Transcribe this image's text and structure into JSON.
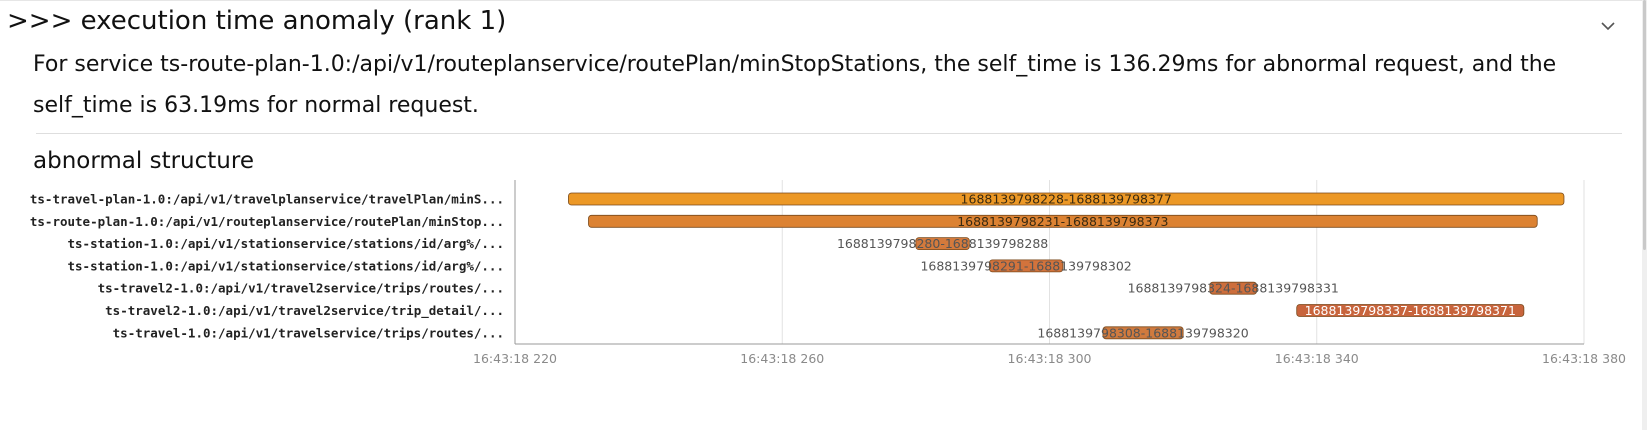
{
  "section": {
    "title": ">>> execution time anomaly (rank 1)",
    "collapse_icon": "chevron-down-icon",
    "description": "For service ts-route-plan-1.0:/api/v1/routeplanservice/routePlan/minStopStations, the self_time is 136.29ms for abnormal request, and the self_time is 63.19ms for normal request.",
    "subtitle": "abnormal structure"
  },
  "chart_data": {
    "type": "gantt",
    "x_axis_ticks": [
      "16:43:18 220",
      "16:43:18 260",
      "16:43:18 300",
      "16:43:18 340",
      "16:43:18 380"
    ],
    "xlim_ms": [
      220,
      380
    ],
    "base_epoch_ms": 1688139798000,
    "grid": true,
    "spans": [
      {
        "service": "ts-travel-plan-1.0:/api/v1/travelplanservice/travelPlan/minS...",
        "start": 1688139798228,
        "end": 1688139798377,
        "label": "1688139798228-1688139798377",
        "color": "#ec9826"
      },
      {
        "service": "ts-route-plan-1.0:/api/v1/routeplanservice/routePlan/minStop...",
        "start": 1688139798231,
        "end": 1688139798373,
        "label": "1688139798231-1688139798373",
        "color": "#dc8232"
      },
      {
        "service": "ts-station-1.0:/api/v1/stationservice/stations/id/arg%/...",
        "start": 1688139798280,
        "end": 1688139798288,
        "label": "1688139798280-1688139798288",
        "color": "#d47a3c"
      },
      {
        "service": "ts-station-1.0:/api/v1/stationservice/stations/id/arg%/...",
        "start": 1688139798291,
        "end": 1688139798302,
        "label": "1688139798291-1688139798302",
        "color": "#d2733c"
      },
      {
        "service": "ts-travel2-1.0:/api/v1/travel2service/trips/routes/...",
        "start": 1688139798324,
        "end": 1688139798331,
        "label": "1688139798324-1688139798331",
        "color": "#cd6e3c"
      },
      {
        "service": "ts-travel2-1.0:/api/v1/travel2service/trip_detail/...",
        "start": 1688139798337,
        "end": 1688139798371,
        "label": "1688139798337-1688139798371",
        "color": "#c8643c"
      },
      {
        "service": "ts-travel-1.0:/api/v1/travelservice/trips/routes/...",
        "start": 1688139798308,
        "end": 1688139798320,
        "label": "1688139798308-1688139798320",
        "color": "#d07a3e"
      }
    ]
  }
}
